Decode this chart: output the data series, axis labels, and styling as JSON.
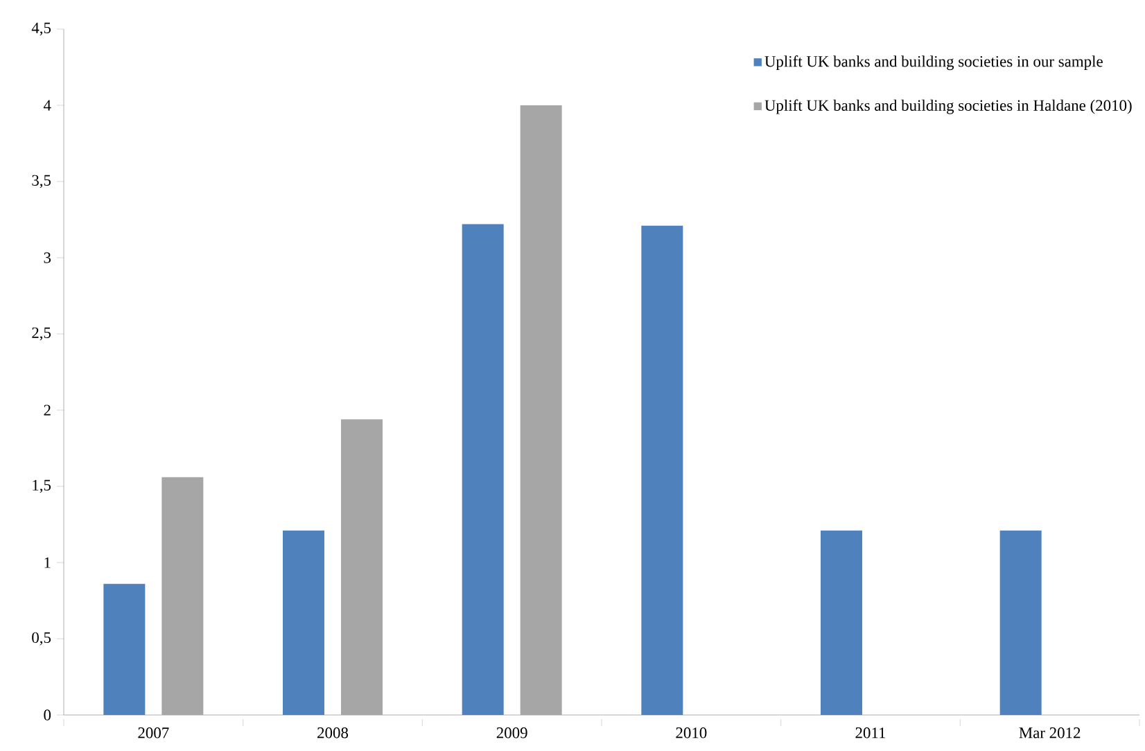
{
  "chart_data": {
    "type": "bar",
    "categories": [
      "2007",
      "2008",
      "2009",
      "2010",
      "2011",
      "Mar 2012"
    ],
    "series": [
      {
        "name": "Uplift UK banks and building societies in our sample",
        "color": "#4f81bd",
        "values": [
          0.86,
          1.21,
          3.22,
          3.21,
          1.21,
          1.21
        ]
      },
      {
        "name": "Uplift UK banks and building societies in Haldane (2010)",
        "color": "#a6a6a6",
        "values": [
          1.56,
          1.94,
          4.0,
          null,
          null,
          null
        ]
      }
    ],
    "ylim": [
      0,
      4.5
    ],
    "yticks": [
      0,
      {
        "value": 0.5,
        "label": "0,5"
      },
      1,
      {
        "value": 1.5,
        "label": "1,5"
      },
      2,
      {
        "value": 2.5,
        "label": "2,5"
      },
      3,
      {
        "value": 3.5,
        "label": "3,5"
      },
      4,
      {
        "value": 4.5,
        "label": "4,5"
      }
    ],
    "grid": false,
    "legend": "top right"
  }
}
